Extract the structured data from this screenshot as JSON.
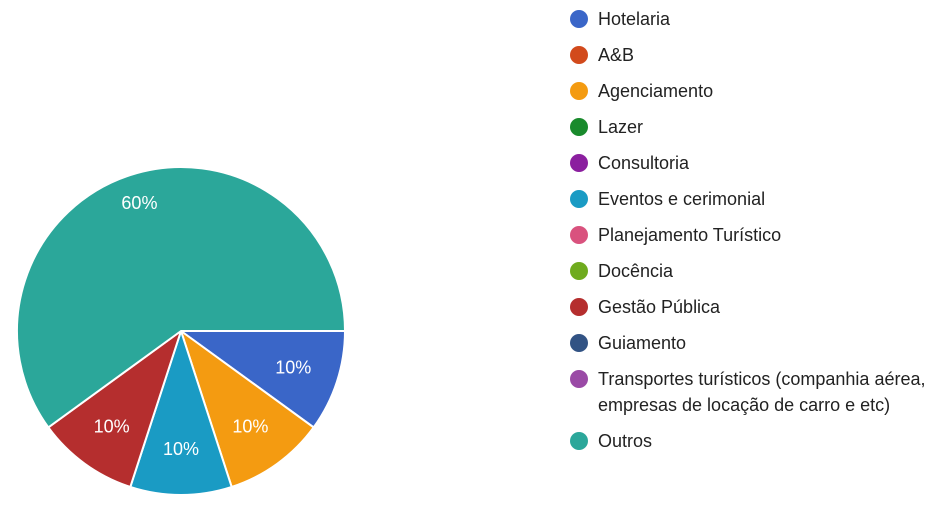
{
  "chart_data": {
    "type": "pie",
    "title": "",
    "legend_position": "right",
    "series": [
      {
        "name": "Hotelaria",
        "value": 10,
        "label": "10%",
        "color": "#3a66c8"
      },
      {
        "name": "A&B",
        "value": 0,
        "label": "",
        "color": "#d24a1c"
      },
      {
        "name": "Agenciamento",
        "value": 10,
        "label": "10%",
        "color": "#f49b11"
      },
      {
        "name": "Lazer",
        "value": 0,
        "label": "",
        "color": "#198a2c"
      },
      {
        "name": "Consultoria",
        "value": 0,
        "label": "",
        "color": "#8b1f9f"
      },
      {
        "name": "Eventos e cerimonial",
        "value": 10,
        "label": "10%",
        "color": "#1a9bc4"
      },
      {
        "name": "Planejamento Turístico",
        "value": 0,
        "label": "",
        "color": "#d9527e"
      },
      {
        "name": "Docência",
        "value": 0,
        "label": "",
        "color": "#6fab1e"
      },
      {
        "name": "Gestão Pública",
        "value": 10,
        "label": "10%",
        "color": "#b52e2e"
      },
      {
        "name": "Guiamento",
        "value": 0,
        "label": "",
        "color": "#325384"
      },
      {
        "name": "Transportes turísticos (companhia aérea, empresas de locação de carro e etc)",
        "value": 0,
        "label": "",
        "color": "#9a4aa6"
      },
      {
        "name": "Outros",
        "value": 60,
        "label": "60%",
        "color": "#2ba79a"
      }
    ]
  }
}
